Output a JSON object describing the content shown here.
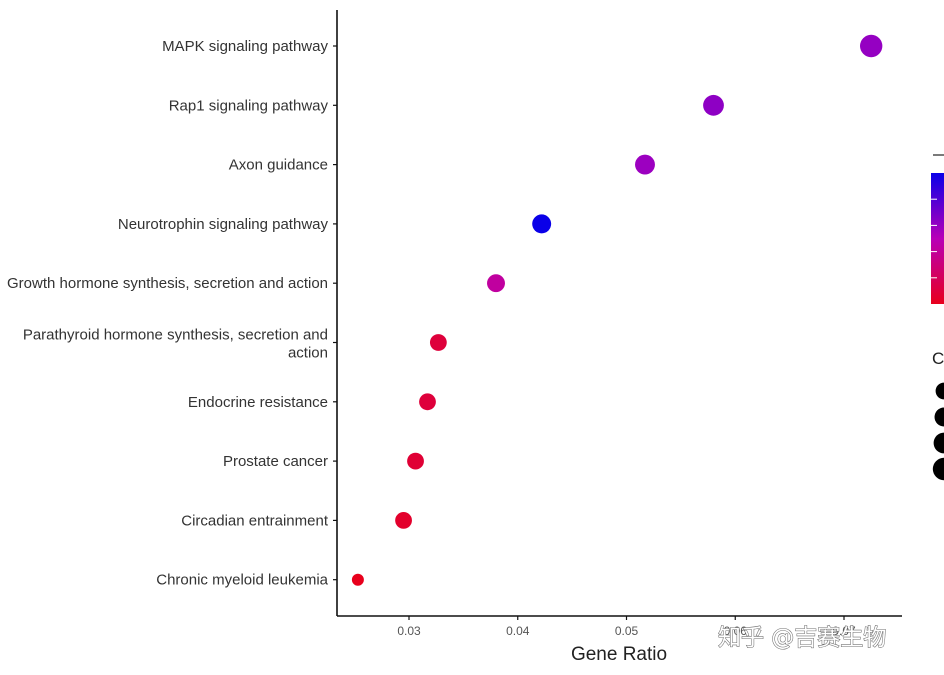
{
  "chart_data": {
    "type": "scatter",
    "title": "",
    "xlabel": "Gene Ratio",
    "ylabel": "",
    "xlim": [
      0.0235,
      0.0745
    ],
    "x_ticks": [
      "0.03",
      "0.04",
      "0.05",
      "0.06",
      "0.07"
    ],
    "categories": [
      "MAPK signaling pathway",
      "Rap1 signaling pathway",
      "Axon guidance",
      "Neurotrophin signaling pathway",
      "Growth hormone synthesis, secretion and action",
      "Parathyroid hormone synthesis, secretion and action",
      "Endocrine resistance",
      "Prostate cancer",
      "Circadian entrainment",
      "Chronic myeloid leukemia"
    ],
    "points": [
      {
        "category": "MAPK signaling pathway",
        "x": 0.0725,
        "count": 10,
        "color_value": 0.6
      },
      {
        "category": "Rap1 signaling pathway",
        "x": 0.058,
        "count": 8,
        "color_value": 0.62
      },
      {
        "category": "Axon guidance",
        "x": 0.0517,
        "count": 7,
        "color_value": 0.58
      },
      {
        "category": "Neurotrophin signaling pathway",
        "x": 0.0422,
        "count": 6,
        "color_value": 1.0
      },
      {
        "category": "Growth hormone synthesis, secretion and action",
        "x": 0.038,
        "count": 5,
        "color_value": 0.42
      },
      {
        "category": "Parathyroid hormone synthesis, secretion and action",
        "x": 0.0327,
        "count": 4,
        "color_value": 0.1
      },
      {
        "category": "Endocrine resistance",
        "x": 0.0317,
        "count": 4,
        "color_value": 0.1
      },
      {
        "category": "Prostate cancer",
        "x": 0.0306,
        "count": 4,
        "color_value": 0.08
      },
      {
        "category": "Circadian entrainment",
        "x": 0.0295,
        "count": 4,
        "color_value": 0.05
      },
      {
        "category": "Chronic myeloid leukemia",
        "x": 0.0253,
        "count": 1,
        "color_value": 0.0
      }
    ],
    "color_legend": {
      "title": "",
      "low_color": "#e8001c",
      "mid_color": "#b800b8",
      "high_color": "#0a00e8"
    },
    "size_legend": {
      "title": "C",
      "counts": [
        4,
        6,
        8,
        10
      ]
    },
    "grid": false,
    "legend": "right"
  },
  "watermark": {
    "text": "知乎 @吉赛生物"
  }
}
